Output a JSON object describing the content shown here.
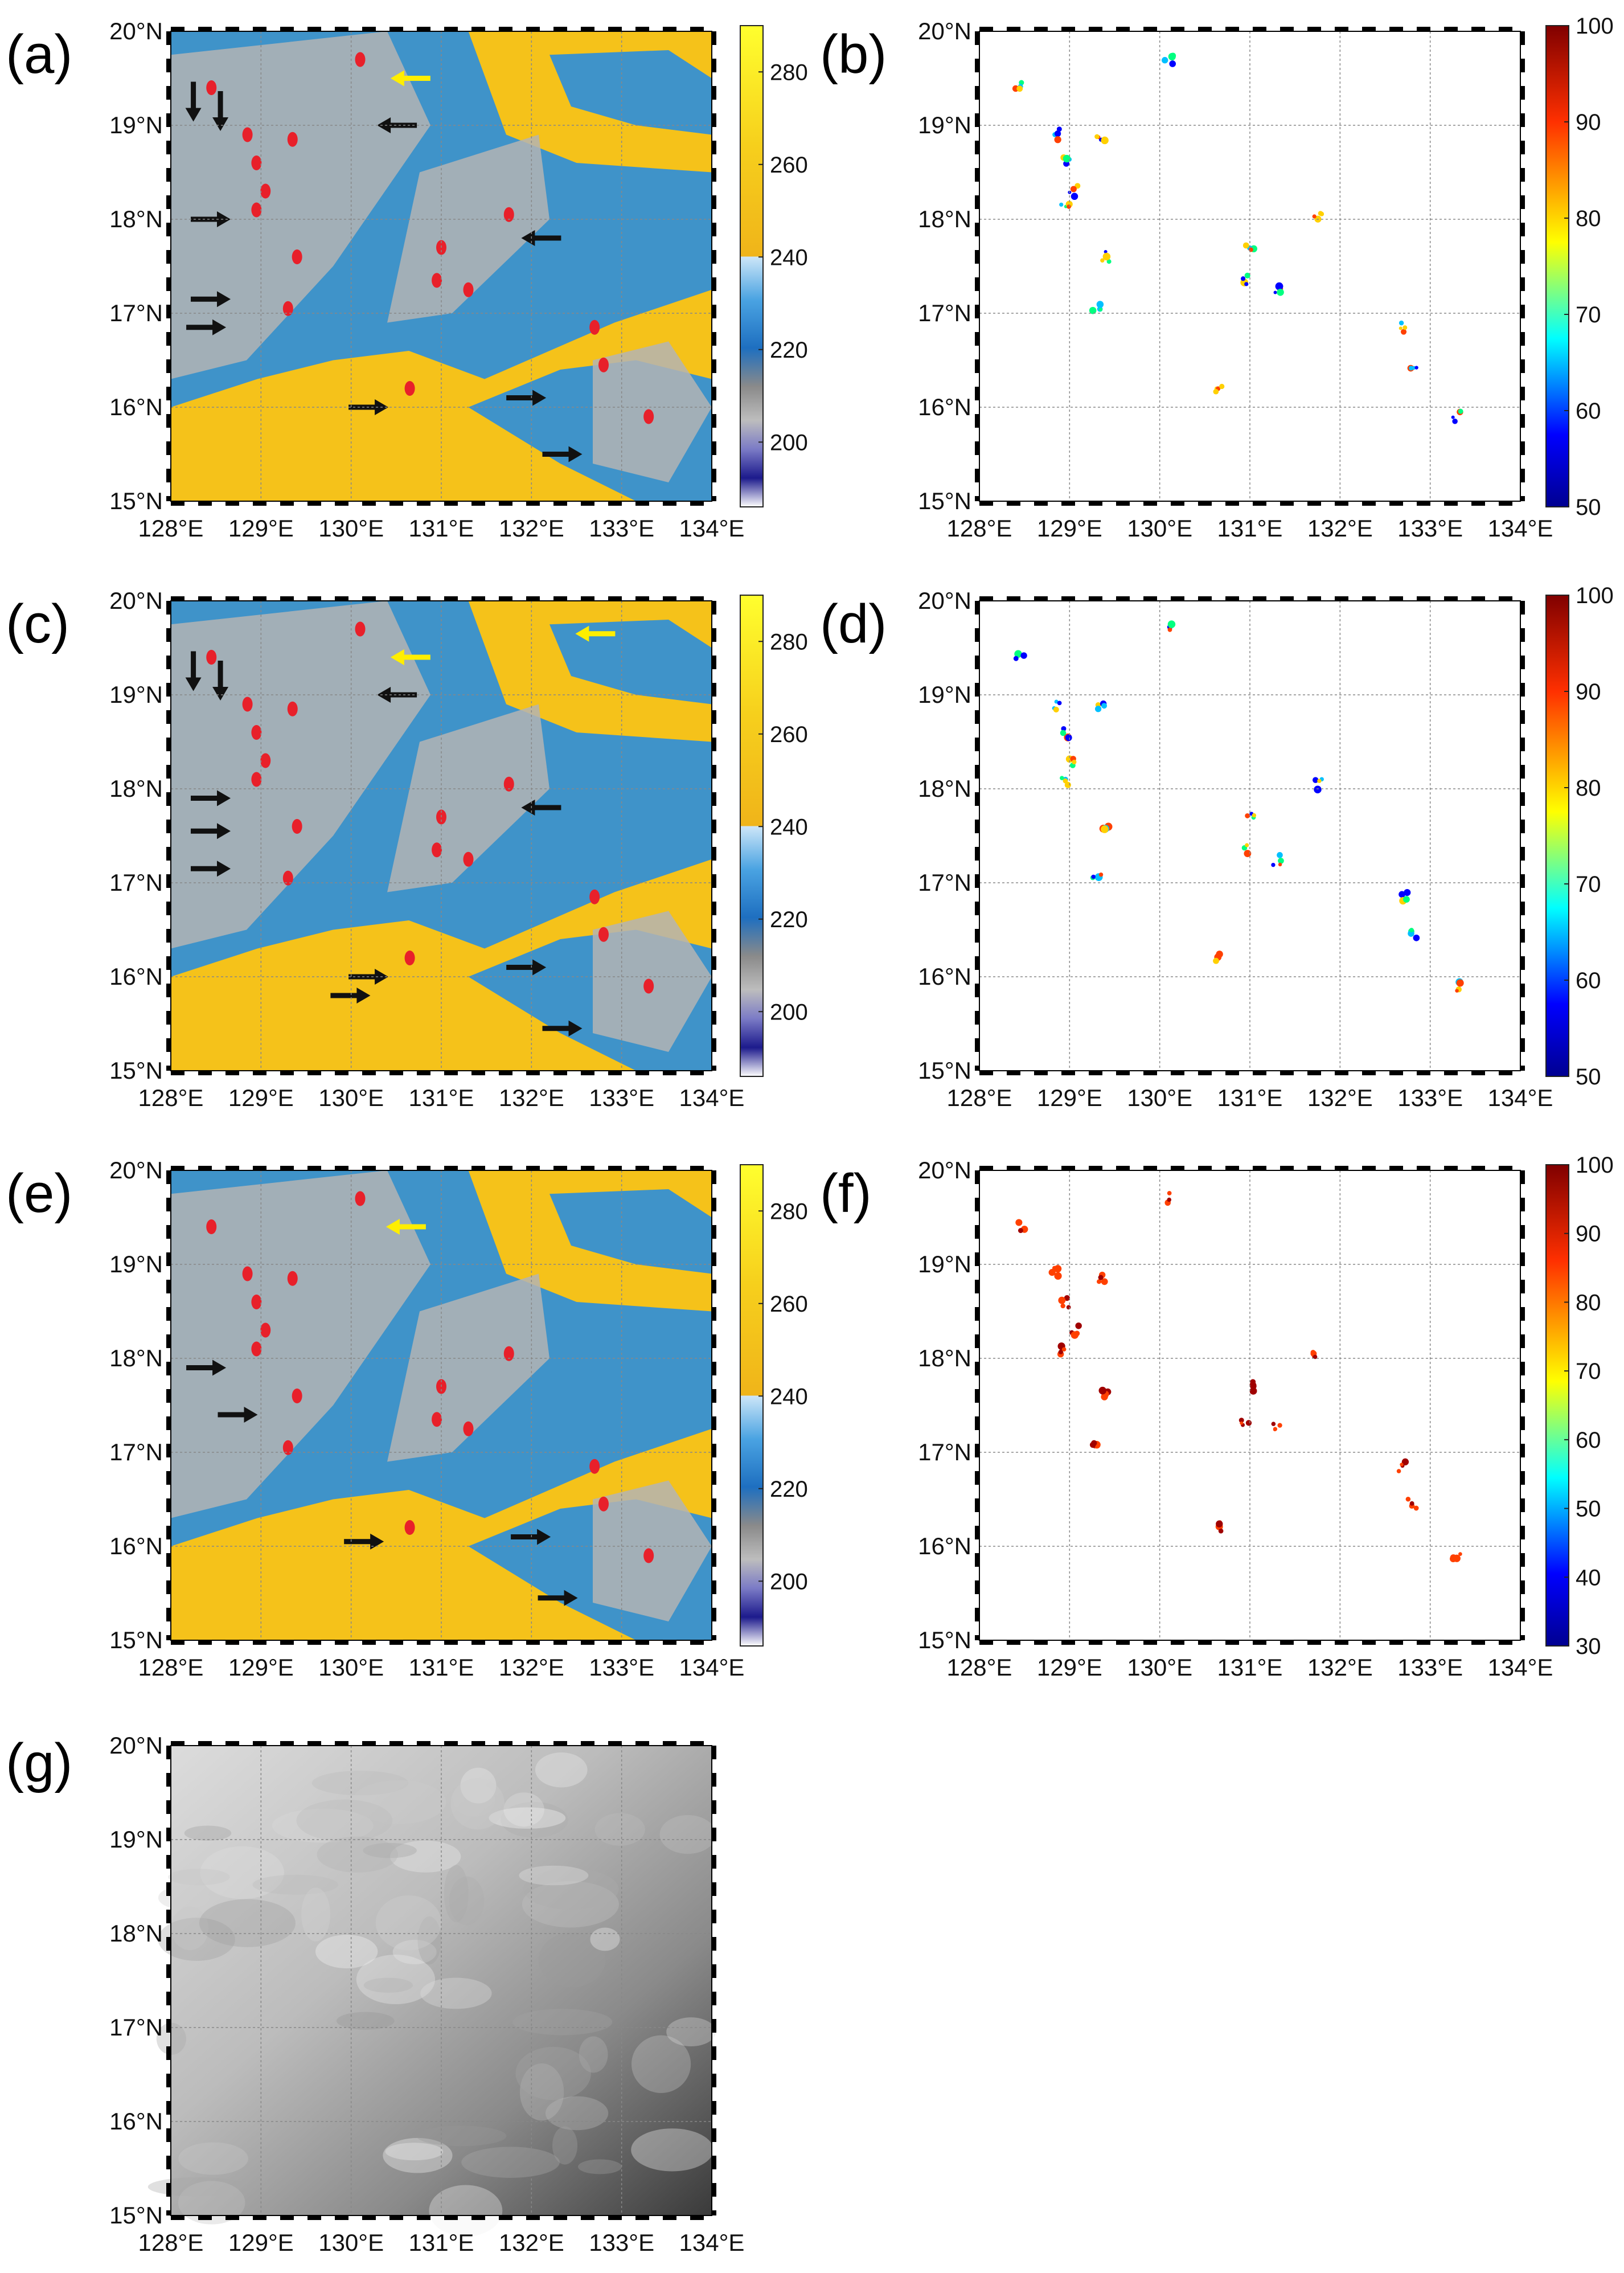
{
  "figure": {
    "axes": {
      "lon_ticks": [
        "128°E",
        "129°E",
        "130°E",
        "131°E",
        "132°E",
        "133°E",
        "134°E"
      ],
      "lat_ticks": [
        "15°N",
        "16°N",
        "17°N",
        "18°N",
        "19°N",
        "20°N"
      ],
      "lon_range": [
        128,
        134
      ],
      "lat_range": [
        15,
        20
      ]
    },
    "colors": {
      "warm_yellow": "#f5c21a",
      "cold_blue": "#2f8fd8",
      "gray": "#b4b4b4",
      "cell_red": "#e8202a",
      "arrow_black": "#111111",
      "arrow_yellow": "#ffee00"
    },
    "panels": [
      {
        "label": "(a)",
        "kind": "brightness-temperature",
        "colorbar": {
          "ticks": [
            "200",
            "220",
            "240",
            "260",
            "280"
          ],
          "range": [
            186,
            290
          ]
        },
        "black_arrows": [
          {
            "lon": 128.25,
            "lat": 19.1,
            "dir": "down"
          },
          {
            "lon": 128.55,
            "lat": 19.0,
            "dir": "down"
          },
          {
            "lon": 128.6,
            "lat": 18.0,
            "dir": "right"
          },
          {
            "lon": 128.6,
            "lat": 17.15,
            "dir": "right"
          },
          {
            "lon": 128.55,
            "lat": 16.85,
            "dir": "right"
          },
          {
            "lon": 130.35,
            "lat": 19.0,
            "dir": "left"
          },
          {
            "lon": 131.95,
            "lat": 17.8,
            "dir": "left"
          },
          {
            "lon": 130.35,
            "lat": 16.0,
            "dir": "right"
          },
          {
            "lon": 132.1,
            "lat": 16.1,
            "dir": "right"
          },
          {
            "lon": 132.5,
            "lat": 15.5,
            "dir": "right"
          }
        ],
        "yellow_arrows": [
          {
            "lon": 130.5,
            "lat": 19.5,
            "dir": "left"
          }
        ]
      },
      {
        "label": "(b)",
        "kind": "probability",
        "colorbar": {
          "ticks": [
            "50",
            "60",
            "70",
            "80",
            "90",
            "100"
          ],
          "range": [
            50,
            100
          ]
        }
      },
      {
        "label": "(c)",
        "kind": "brightness-temperature",
        "colorbar": {
          "ticks": [
            "200",
            "220",
            "240",
            "260",
            "280"
          ],
          "range": [
            186,
            290
          ]
        },
        "black_arrows": [
          {
            "lon": 128.25,
            "lat": 19.1,
            "dir": "down"
          },
          {
            "lon": 128.55,
            "lat": 19.0,
            "dir": "down"
          },
          {
            "lon": 128.6,
            "lat": 17.9,
            "dir": "right"
          },
          {
            "lon": 128.6,
            "lat": 17.55,
            "dir": "right"
          },
          {
            "lon": 128.6,
            "lat": 17.15,
            "dir": "right"
          },
          {
            "lon": 130.35,
            "lat": 19.0,
            "dir": "left"
          },
          {
            "lon": 131.95,
            "lat": 17.8,
            "dir": "left"
          },
          {
            "lon": 130.35,
            "lat": 16.0,
            "dir": "right"
          },
          {
            "lon": 130.15,
            "lat": 15.8,
            "dir": "right"
          },
          {
            "lon": 132.1,
            "lat": 16.1,
            "dir": "right"
          },
          {
            "lon": 132.5,
            "lat": 15.45,
            "dir": "right"
          }
        ],
        "yellow_arrows": [
          {
            "lon": 130.5,
            "lat": 19.4,
            "dir": "left"
          },
          {
            "lon": 132.55,
            "lat": 19.65,
            "dir": "left"
          }
        ]
      },
      {
        "label": "(d)",
        "kind": "probability",
        "colorbar": {
          "ticks": [
            "50",
            "60",
            "70",
            "80",
            "90",
            "100"
          ],
          "range": [
            50,
            100
          ]
        }
      },
      {
        "label": "(e)",
        "kind": "brightness-temperature",
        "colorbar": {
          "ticks": [
            "200",
            "220",
            "240",
            "260",
            "280"
          ],
          "range": [
            186,
            290
          ]
        },
        "black_arrows": [
          {
            "lon": 128.55,
            "lat": 17.9,
            "dir": "right"
          },
          {
            "lon": 128.9,
            "lat": 17.4,
            "dir": "right"
          },
          {
            "lon": 130.3,
            "lat": 16.05,
            "dir": "right"
          },
          {
            "lon": 132.15,
            "lat": 16.1,
            "dir": "right"
          },
          {
            "lon": 132.45,
            "lat": 15.45,
            "dir": "right"
          }
        ],
        "yellow_arrows": [
          {
            "lon": 130.45,
            "lat": 19.4,
            "dir": "left"
          }
        ]
      },
      {
        "label": "(f)",
        "kind": "probability",
        "colorbar": {
          "ticks": [
            "30",
            "40",
            "50",
            "60",
            "70",
            "80",
            "90",
            "100"
          ],
          "range": [
            30,
            100
          ]
        }
      },
      {
        "label": "(g)",
        "kind": "visible"
      }
    ],
    "convective_cells": [
      {
        "lon": 128.45,
        "lat": 19.4
      },
      {
        "lon": 128.85,
        "lat": 18.9
      },
      {
        "lon": 128.95,
        "lat": 18.6
      },
      {
        "lon": 129.05,
        "lat": 18.3
      },
      {
        "lon": 128.95,
        "lat": 18.1
      },
      {
        "lon": 129.35,
        "lat": 18.85
      },
      {
        "lon": 129.4,
        "lat": 17.6
      },
      {
        "lon": 129.3,
        "lat": 17.05
      },
      {
        "lon": 130.1,
        "lat": 19.7
      },
      {
        "lon": 131.0,
        "lat": 17.7
      },
      {
        "lon": 130.95,
        "lat": 17.35
      },
      {
        "lon": 131.3,
        "lat": 17.25
      },
      {
        "lon": 131.75,
        "lat": 18.05
      },
      {
        "lon": 132.7,
        "lat": 16.85
      },
      {
        "lon": 132.8,
        "lat": 16.45
      },
      {
        "lon": 133.3,
        "lat": 15.9
      },
      {
        "lon": 130.65,
        "lat": 16.2
      }
    ]
  }
}
